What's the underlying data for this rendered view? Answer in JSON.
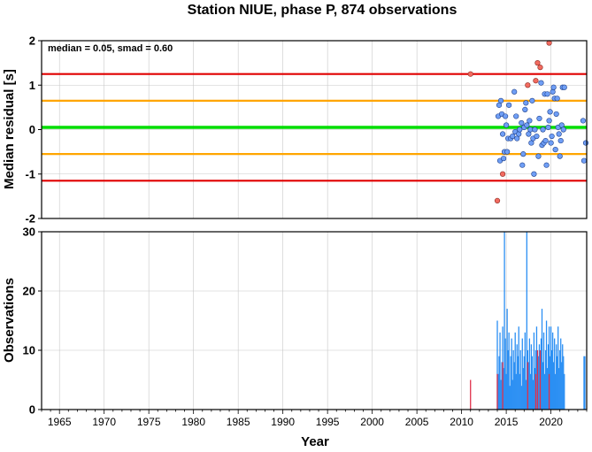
{
  "title": "Station NIUE, phase P, 874 observations",
  "chart_data": [
    {
      "type": "scatter",
      "ylabel": "Median residual [s]",
      "xlim": [
        1963,
        2024
      ],
      "ylim": [
        -2,
        2
      ],
      "x_ticks": [
        1965,
        1970,
        1975,
        1980,
        1985,
        1990,
        1995,
        2000,
        2005,
        2010,
        2015,
        2020
      ],
      "y_ticks": [
        -2,
        -1,
        0,
        1,
        2
      ],
      "grid": true,
      "annotation": "median = 0.05, smad = 0.60",
      "reference_lines": [
        {
          "value": 1.25,
          "color": "#e00000"
        },
        {
          "value": 0.65,
          "color": "#ffa500"
        },
        {
          "value": 0.05,
          "color": "#00dd00"
        },
        {
          "value": -0.55,
          "color": "#ffa500"
        },
        {
          "value": -1.15,
          "color": "#e00000"
        }
      ],
      "colors": {
        "inlier": "#6f9ef5",
        "outlier": "#f26b60"
      },
      "outliers": [
        [
          2011.0,
          1.25
        ],
        [
          2014.0,
          -1.6
        ],
        [
          2014.6,
          -1.0
        ],
        [
          2017.4,
          1.0
        ],
        [
          2018.3,
          1.1
        ],
        [
          2018.5,
          1.5
        ],
        [
          2018.8,
          1.4
        ],
        [
          2019.8,
          1.95
        ]
      ],
      "inliers": [
        [
          2014.1,
          0.3
        ],
        [
          2014.2,
          0.55
        ],
        [
          2014.3,
          -0.7
        ],
        [
          2014.4,
          0.65
        ],
        [
          2014.5,
          0.35
        ],
        [
          2014.6,
          -0.1
        ],
        [
          2014.7,
          -0.65
        ],
        [
          2014.8,
          -0.5
        ],
        [
          2014.9,
          0.3
        ],
        [
          2015.0,
          0.1
        ],
        [
          2015.1,
          -0.5
        ],
        [
          2015.2,
          -0.2
        ],
        [
          2015.3,
          0.55
        ],
        [
          2015.5,
          -0.2
        ],
        [
          2015.7,
          -0.15
        ],
        [
          2015.9,
          0.85
        ],
        [
          2016.0,
          -0.05
        ],
        [
          2016.1,
          0.3
        ],
        [
          2016.2,
          -0.2
        ],
        [
          2016.4,
          -0.1
        ],
        [
          2016.5,
          0.0
        ],
        [
          2016.7,
          0.15
        ],
        [
          2016.8,
          -0.8
        ],
        [
          2016.9,
          -0.55
        ],
        [
          2017.0,
          0.05
        ],
        [
          2017.1,
          0.45
        ],
        [
          2017.2,
          0.6
        ],
        [
          2017.3,
          0.1
        ],
        [
          2017.5,
          -0.1
        ],
        [
          2017.6,
          0.2
        ],
        [
          2017.7,
          0.0
        ],
        [
          2017.8,
          -0.3
        ],
        [
          2017.9,
          0.65
        ],
        [
          2018.0,
          -0.2
        ],
        [
          2018.1,
          -1.0
        ],
        [
          2018.2,
          0.0
        ],
        [
          2018.4,
          -0.15
        ],
        [
          2018.6,
          -0.6
        ],
        [
          2018.7,
          0.25
        ],
        [
          2018.9,
          1.05
        ],
        [
          2019.0,
          -0.35
        ],
        [
          2019.1,
          0.0
        ],
        [
          2019.2,
          -0.3
        ],
        [
          2019.3,
          0.8
        ],
        [
          2019.4,
          -0.25
        ],
        [
          2019.5,
          -0.8
        ],
        [
          2019.6,
          0.8
        ],
        [
          2019.7,
          0.05
        ],
        [
          2019.8,
          0.2
        ],
        [
          2019.9,
          0.4
        ],
        [
          2020.0,
          -0.3
        ],
        [
          2020.1,
          -0.15
        ],
        [
          2020.2,
          0.85
        ],
        [
          2020.3,
          0.95
        ],
        [
          2020.4,
          0.7
        ],
        [
          2020.5,
          -0.45
        ],
        [
          2020.6,
          0.35
        ],
        [
          2020.7,
          0.7
        ],
        [
          2020.8,
          0.05
        ],
        [
          2020.9,
          -0.1
        ],
        [
          2021.0,
          -0.6
        ],
        [
          2021.1,
          -0.25
        ],
        [
          2021.2,
          0.1
        ],
        [
          2021.3,
          0.95
        ],
        [
          2021.4,
          0.0
        ],
        [
          2021.5,
          0.95
        ],
        [
          2023.6,
          0.2
        ],
        [
          2023.7,
          -0.7
        ],
        [
          2023.9,
          -0.3
        ]
      ]
    },
    {
      "type": "bar",
      "xlabel": "Year",
      "ylabel": "Observations",
      "xlim": [
        1963,
        2024
      ],
      "ylim": [
        0,
        30
      ],
      "x_ticks": [
        1965,
        1970,
        1975,
        1980,
        1985,
        1990,
        1995,
        2000,
        2005,
        2010,
        2015,
        2020
      ],
      "y_ticks": [
        0,
        10,
        20,
        30
      ],
      "grid": true,
      "colors": {
        "all": "#2b8ff3",
        "outlier": "#e0304a"
      },
      "bars_all": [
        [
          2014.0,
          15
        ],
        [
          2014.1,
          6
        ],
        [
          2014.2,
          9
        ],
        [
          2014.3,
          13
        ],
        [
          2014.4,
          5
        ],
        [
          2014.5,
          8
        ],
        [
          2014.6,
          14
        ],
        [
          2014.7,
          7
        ],
        [
          2014.8,
          30
        ],
        [
          2014.9,
          12
        ],
        [
          2015.0,
          6
        ],
        [
          2015.1,
          17
        ],
        [
          2015.2,
          10
        ],
        [
          2015.3,
          13
        ],
        [
          2015.4,
          4
        ],
        [
          2015.5,
          9
        ],
        [
          2015.6,
          12
        ],
        [
          2015.7,
          5
        ],
        [
          2015.8,
          10
        ],
        [
          2015.9,
          8
        ],
        [
          2016.0,
          13
        ],
        [
          2016.1,
          6
        ],
        [
          2016.2,
          11
        ],
        [
          2016.3,
          9
        ],
        [
          2016.4,
          14
        ],
        [
          2016.5,
          6
        ],
        [
          2016.6,
          10
        ],
        [
          2016.7,
          4
        ],
        [
          2016.8,
          12
        ],
        [
          2016.9,
          7
        ],
        [
          2017.0,
          9
        ],
        [
          2017.1,
          13
        ],
        [
          2017.2,
          5
        ],
        [
          2017.3,
          30
        ],
        [
          2017.4,
          10
        ],
        [
          2017.5,
          8
        ],
        [
          2017.6,
          12
        ],
        [
          2017.7,
          6
        ],
        [
          2017.8,
          11
        ],
        [
          2017.9,
          9
        ],
        [
          2018.0,
          5
        ],
        [
          2018.1,
          13
        ],
        [
          2018.2,
          7
        ],
        [
          2018.3,
          10
        ],
        [
          2018.4,
          14
        ],
        [
          2018.5,
          6
        ],
        [
          2018.6,
          9
        ],
        [
          2018.7,
          11
        ],
        [
          2018.8,
          4
        ],
        [
          2018.9,
          12
        ],
        [
          2019.0,
          17
        ],
        [
          2019.1,
          8
        ],
        [
          2019.2,
          13
        ],
        [
          2019.3,
          6
        ],
        [
          2019.4,
          10
        ],
        [
          2019.5,
          15
        ],
        [
          2019.6,
          7
        ],
        [
          2019.7,
          11
        ],
        [
          2019.8,
          14
        ],
        [
          2019.9,
          9
        ],
        [
          2020.0,
          14
        ],
        [
          2020.1,
          10
        ],
        [
          2020.2,
          13
        ],
        [
          2020.3,
          8
        ],
        [
          2020.4,
          12
        ],
        [
          2020.5,
          6
        ],
        [
          2020.6,
          11
        ],
        [
          2020.7,
          9
        ],
        [
          2020.8,
          14
        ],
        [
          2020.9,
          7
        ],
        [
          2021.0,
          10
        ],
        [
          2021.1,
          12
        ],
        [
          2021.2,
          8
        ],
        [
          2021.3,
          11
        ],
        [
          2021.4,
          9
        ],
        [
          2021.5,
          6
        ],
        [
          2023.7,
          9
        ],
        [
          2023.8,
          9
        ]
      ],
      "bars_outlier": [
        [
          2011.0,
          5
        ],
        [
          2014.0,
          6
        ],
        [
          2014.6,
          8
        ],
        [
          2017.4,
          8
        ],
        [
          2018.3,
          6
        ],
        [
          2018.5,
          10
        ],
        [
          2018.8,
          10
        ],
        [
          2019.8,
          6
        ]
      ]
    }
  ]
}
